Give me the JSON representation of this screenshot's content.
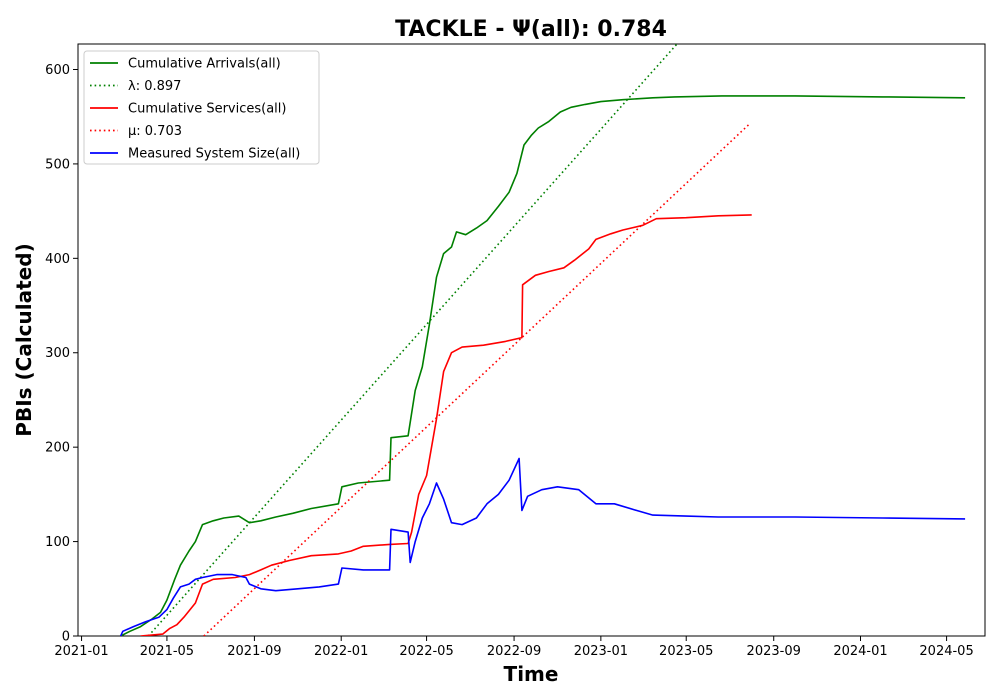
{
  "chart_data": {
    "type": "line",
    "title": "TACKLE -  Ψ(all): 0.784",
    "xlabel": "Time",
    "ylabel": "PBIs (Calculated)",
    "xlim": [
      "2020-12-27",
      "2024-06-24"
    ],
    "ylim": [
      0,
      627
    ],
    "xticks": [
      "2021-01",
      "2021-05",
      "2021-09",
      "2022-01",
      "2022-05",
      "2022-09",
      "2023-01",
      "2023-05",
      "2023-09",
      "2024-01",
      "2024-05"
    ],
    "yticks": [
      0,
      100,
      200,
      300,
      400,
      500,
      600
    ],
    "legend_position": "upper-left",
    "grid": false,
    "series": [
      {
        "name": "Cumulative Arrivals(all)",
        "color": "#008000",
        "style": "solid",
        "points": [
          [
            "2021-02-25",
            0
          ],
          [
            "2021-03-10",
            5
          ],
          [
            "2021-03-25",
            10
          ],
          [
            "2021-04-10",
            18
          ],
          [
            "2021-04-22",
            25
          ],
          [
            "2021-05-01",
            38
          ],
          [
            "2021-05-12",
            60
          ],
          [
            "2021-05-20",
            75
          ],
          [
            "2021-06-01",
            90
          ],
          [
            "2021-06-10",
            100
          ],
          [
            "2021-06-20",
            118
          ],
          [
            "2021-07-05",
            122
          ],
          [
            "2021-07-20",
            125
          ],
          [
            "2021-08-10",
            127
          ],
          [
            "2021-08-25",
            120
          ],
          [
            "2021-09-10",
            122
          ],
          [
            "2021-10-01",
            126
          ],
          [
            "2021-10-25",
            130
          ],
          [
            "2021-11-20",
            135
          ],
          [
            "2021-12-28",
            140
          ],
          [
            "2022-01-02",
            158
          ],
          [
            "2022-01-25",
            162
          ],
          [
            "2022-03-10",
            165
          ],
          [
            "2022-03-12",
            210
          ],
          [
            "2022-04-05",
            212
          ],
          [
            "2022-04-15",
            260
          ],
          [
            "2022-04-25",
            285
          ],
          [
            "2022-05-05",
            330
          ],
          [
            "2022-05-15",
            380
          ],
          [
            "2022-05-25",
            405
          ],
          [
            "2022-06-05",
            412
          ],
          [
            "2022-06-12",
            428
          ],
          [
            "2022-06-25",
            425
          ],
          [
            "2022-07-10",
            432
          ],
          [
            "2022-07-25",
            440
          ],
          [
            "2022-08-10",
            455
          ],
          [
            "2022-08-25",
            470
          ],
          [
            "2022-09-05",
            490
          ],
          [
            "2022-09-15",
            520
          ],
          [
            "2022-09-25",
            530
          ],
          [
            "2022-10-05",
            538
          ],
          [
            "2022-10-20",
            545
          ],
          [
            "2022-11-05",
            555
          ],
          [
            "2022-11-20",
            560
          ],
          [
            "2022-12-10",
            563
          ],
          [
            "2023-01-01",
            566
          ],
          [
            "2023-02-01",
            568
          ],
          [
            "2023-03-15",
            570
          ],
          [
            "2023-04-15",
            571
          ],
          [
            "2023-06-20",
            572
          ],
          [
            "2023-10-01",
            572
          ],
          [
            "2024-02-01",
            571
          ],
          [
            "2024-05-27",
            570
          ]
        ]
      },
      {
        "name": "λ: 0.897",
        "color": "#008000",
        "style": "dotted",
        "points": [
          [
            "2021-04-05",
            0
          ],
          [
            "2023-04-18",
            627
          ]
        ]
      },
      {
        "name": "Cumulative Services(all)",
        "color": "#ff0000",
        "style": "solid",
        "points": [
          [
            "2021-03-25",
            0
          ],
          [
            "2021-04-25",
            2
          ],
          [
            "2021-05-05",
            8
          ],
          [
            "2021-05-15",
            12
          ],
          [
            "2021-05-25",
            20
          ],
          [
            "2021-06-10",
            35
          ],
          [
            "2021-06-20",
            55
          ],
          [
            "2021-07-05",
            60
          ],
          [
            "2021-08-05",
            62
          ],
          [
            "2021-08-25",
            65
          ],
          [
            "2021-09-10",
            70
          ],
          [
            "2021-09-25",
            75
          ],
          [
            "2021-10-20",
            80
          ],
          [
            "2021-11-20",
            85
          ],
          [
            "2021-12-28",
            87
          ],
          [
            "2022-01-15",
            90
          ],
          [
            "2022-02-01",
            95
          ],
          [
            "2022-03-10",
            97
          ],
          [
            "2022-04-05",
            98
          ],
          [
            "2022-04-10",
            110
          ],
          [
            "2022-04-20",
            150
          ],
          [
            "2022-05-01",
            170
          ],
          [
            "2022-05-15",
            230
          ],
          [
            "2022-05-25",
            280
          ],
          [
            "2022-06-05",
            300
          ],
          [
            "2022-06-20",
            306
          ],
          [
            "2022-07-20",
            308
          ],
          [
            "2022-08-20",
            312
          ],
          [
            "2022-09-12",
            316
          ],
          [
            "2022-09-13",
            372
          ],
          [
            "2022-10-01",
            382
          ],
          [
            "2022-10-20",
            386
          ],
          [
            "2022-11-10",
            390
          ],
          [
            "2022-11-25",
            398
          ],
          [
            "2022-12-15",
            410
          ],
          [
            "2022-12-25",
            420
          ],
          [
            "2023-01-15",
            426
          ],
          [
            "2023-02-01",
            430
          ],
          [
            "2023-03-01",
            435
          ],
          [
            "2023-03-20",
            442
          ],
          [
            "2023-05-01",
            443
          ],
          [
            "2023-06-15",
            445
          ],
          [
            "2023-08-01",
            446
          ]
        ]
      },
      {
        "name": "μ: 0.703",
        "color": "#ff0000",
        "style": "dotted",
        "points": [
          [
            "2021-06-22",
            0
          ],
          [
            "2023-07-30",
            543
          ]
        ]
      },
      {
        "name": "Measured System Size(all)",
        "color": "#0000ff",
        "style": "solid",
        "points": [
          [
            "2021-02-25",
            0
          ],
          [
            "2021-02-28",
            5
          ],
          [
            "2021-03-15",
            10
          ],
          [
            "2021-04-01",
            15
          ],
          [
            "2021-04-20",
            20
          ],
          [
            "2021-05-01",
            28
          ],
          [
            "2021-05-10",
            40
          ],
          [
            "2021-05-20",
            52
          ],
          [
            "2021-06-01",
            55
          ],
          [
            "2021-06-10",
            60
          ],
          [
            "2021-06-20",
            62
          ],
          [
            "2021-07-10",
            65
          ],
          [
            "2021-08-01",
            65
          ],
          [
            "2021-08-20",
            62
          ],
          [
            "2021-08-25",
            55
          ],
          [
            "2021-09-10",
            50
          ],
          [
            "2021-10-01",
            48
          ],
          [
            "2021-11-01",
            50
          ],
          [
            "2021-12-01",
            52
          ],
          [
            "2021-12-28",
            55
          ],
          [
            "2022-01-02",
            72
          ],
          [
            "2022-02-01",
            70
          ],
          [
            "2022-03-10",
            70
          ],
          [
            "2022-03-12",
            113
          ],
          [
            "2022-04-05",
            110
          ],
          [
            "2022-04-08",
            78
          ],
          [
            "2022-04-15",
            100
          ],
          [
            "2022-04-25",
            125
          ],
          [
            "2022-05-05",
            140
          ],
          [
            "2022-05-15",
            162
          ],
          [
            "2022-05-25",
            145
          ],
          [
            "2022-06-05",
            120
          ],
          [
            "2022-06-20",
            118
          ],
          [
            "2022-07-10",
            125
          ],
          [
            "2022-07-25",
            140
          ],
          [
            "2022-08-10",
            150
          ],
          [
            "2022-08-25",
            165
          ],
          [
            "2022-09-08",
            188
          ],
          [
            "2022-09-12",
            133
          ],
          [
            "2022-09-20",
            148
          ],
          [
            "2022-10-10",
            155
          ],
          [
            "2022-11-01",
            158
          ],
          [
            "2022-12-01",
            155
          ],
          [
            "2022-12-25",
            140
          ],
          [
            "2023-01-20",
            140
          ],
          [
            "2023-02-20",
            133
          ],
          [
            "2023-03-15",
            128
          ],
          [
            "2023-05-01",
            127
          ],
          [
            "2023-06-15",
            126
          ],
          [
            "2023-10-01",
            126
          ],
          [
            "2024-02-01",
            125
          ],
          [
            "2024-05-27",
            124
          ]
        ]
      }
    ]
  }
}
